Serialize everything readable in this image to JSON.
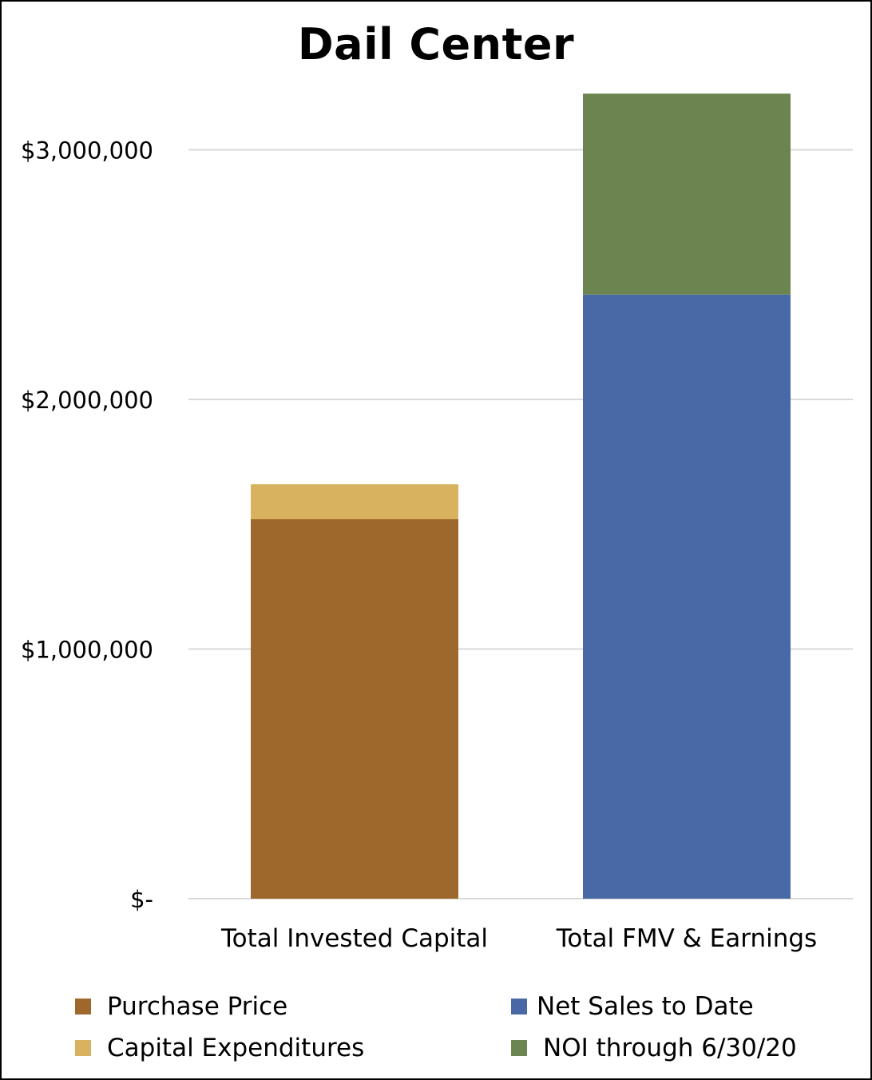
{
  "chart_data": {
    "type": "bar",
    "stacked": true,
    "title": "Dail Center",
    "xlabel": "",
    "ylabel": "",
    "categories": [
      "Total Invested Capital",
      "Total FMV & Earnings"
    ],
    "series": [
      {
        "name": "Purchase Price",
        "values": [
          1520000,
          0
        ],
        "color": "#9E672C"
      },
      {
        "name": "Capital Expenditures",
        "values": [
          140000,
          0
        ],
        "color": "#D9B25F"
      },
      {
        "name": "Net Sales to Date",
        "values": [
          0,
          2420000
        ],
        "color": "#4869A5"
      },
      {
        "name": "NOI through 6/30/20",
        "values": [
          0,
          805000
        ],
        "color": "#6B8450"
      }
    ],
    "ylim": [
      0,
      3200000
    ],
    "yticks": [
      0,
      1000000,
      2000000,
      3000000
    ],
    "ytick_labels": [
      "$-",
      "$1,000,000",
      "$2,000,000",
      "$3,000,000"
    ],
    "grid": true,
    "legend_position": "bottom"
  }
}
